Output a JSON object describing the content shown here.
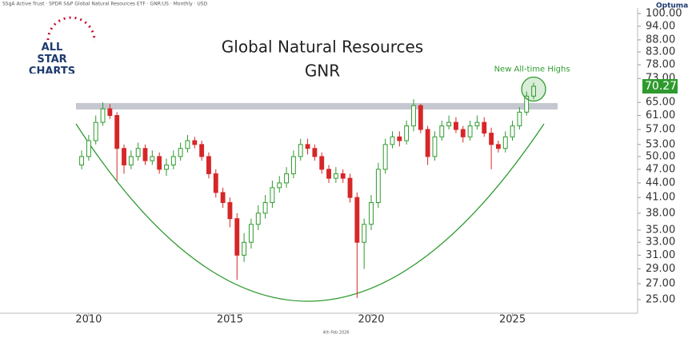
{
  "chart_data": {
    "type": "candlestick",
    "header": "SSgA Active Trust · SPDR S&P Global Natural Resources ETF · GNR:US · Monthly · USD",
    "brand": "ALL STAR CHARTS",
    "platform": "Optuma",
    "title": "Global Natural Resources",
    "subtitle": "GNR",
    "annotation": "New All-time Highs",
    "footer": "4th Feb 2026",
    "log_scale": true,
    "up_color": "#2e9a2e",
    "down_color": "#d62728",
    "highlight_color": "#2e9a2e",
    "resistance_zone": [
      62.8,
      64.8
    ],
    "resistance_zone_x": [
      2009.55,
      2026.6
    ],
    "xlim": [
      2006.86,
      2029.43
    ],
    "xticks": [
      2010,
      2015,
      2020,
      2025
    ],
    "ylim": [
      23.4,
      102.7
    ],
    "yticks": [
      {
        "value": 25,
        "label": "25.00"
      },
      {
        "value": 27,
        "label": "27.00"
      },
      {
        "value": 29,
        "label": "29.00"
      },
      {
        "value": 31,
        "label": "31.00"
      },
      {
        "value": 33,
        "label": "33.00"
      },
      {
        "value": 35,
        "label": "35.00"
      },
      {
        "value": 38,
        "label": "38.00"
      },
      {
        "value": 41,
        "label": "41.00"
      },
      {
        "value": 44,
        "label": "44.00"
      },
      {
        "value": 47,
        "label": "47.00"
      },
      {
        "value": 50,
        "label": "50.00"
      },
      {
        "value": 53,
        "label": "53.00"
      },
      {
        "value": 57,
        "label": "57.00"
      },
      {
        "value": 61,
        "label": "61.00"
      },
      {
        "value": 65,
        "label": "65.00"
      },
      {
        "value": 73,
        "label": "73.00"
      },
      {
        "value": 78,
        "label": "78.00"
      },
      {
        "value": 83,
        "label": "83.00"
      },
      {
        "value": 88,
        "label": "88.00"
      },
      {
        "value": 94,
        "label": "94.00"
      },
      {
        "value": 100,
        "label": "100.00"
      }
    ],
    "x": [
      2009.75,
      2010,
      2010.25,
      2010.5,
      2010.75,
      2011,
      2011.25,
      2011.5,
      2011.75,
      2012,
      2012.25,
      2012.5,
      2012.75,
      2013,
      2013.25,
      2013.5,
      2013.75,
      2014,
      2014.25,
      2014.5,
      2014.75,
      2015,
      2015.25,
      2015.5,
      2015.75,
      2016,
      2016.25,
      2016.5,
      2016.75,
      2017,
      2017.25,
      2017.5,
      2017.75,
      2018,
      2018.25,
      2018.5,
      2018.75,
      2019,
      2019.25,
      2019.5,
      2019.75,
      2020,
      2020.25,
      2020.5,
      2020.75,
      2021,
      2021.25,
      2021.5,
      2021.75,
      2022,
      2022.25,
      2022.5,
      2022.75,
      2023,
      2023.25,
      2023.5,
      2023.75,
      2024,
      2024.25,
      2024.5,
      2024.75,
      2025,
      2025.25,
      2025.5,
      2025.75
    ],
    "open": [
      48,
      50,
      54,
      59,
      63,
      61,
      52,
      48,
      50,
      52,
      49,
      50,
      47,
      48,
      50,
      52,
      54,
      53,
      50,
      46,
      42,
      40,
      37,
      31,
      33,
      36,
      38,
      40,
      43,
      44,
      46,
      50,
      53,
      52,
      50,
      47,
      45,
      46,
      45,
      41,
      33,
      36,
      40,
      47,
      53,
      55,
      54,
      58,
      64,
      57,
      50,
      55,
      58,
      59,
      57,
      55,
      58,
      59,
      56,
      53,
      52,
      55,
      58,
      62,
      67
    ],
    "high": [
      51.5,
      55.5,
      61,
      65,
      64.5,
      62,
      53,
      51.5,
      53.5,
      53,
      51.5,
      51,
      49.5,
      51.5,
      53.5,
      55.5,
      55,
      54,
      51,
      47,
      43,
      41,
      38,
      34.5,
      37,
      39.5,
      41.5,
      44.5,
      45.5,
      47.5,
      51.5,
      54.5,
      54.5,
      53,
      51,
      48,
      47.5,
      47,
      46,
      42,
      37,
      41.5,
      48.5,
      54.5,
      56.5,
      56.5,
      59.5,
      66,
      64.5,
      58,
      56.5,
      59.5,
      61,
      60.5,
      58,
      59.5,
      61,
      60.5,
      57.5,
      54,
      56.5,
      59.5,
      63.5,
      68.5,
      71.5
    ],
    "low": [
      47,
      49,
      53,
      58,
      60,
      44.5,
      46,
      47,
      49,
      48,
      48,
      46,
      45.5,
      47,
      49,
      51,
      52,
      49,
      45,
      41,
      39,
      35.5,
      27.5,
      30,
      32,
      35,
      37,
      39,
      42,
      43,
      45,
      49,
      50.5,
      49,
      46,
      44,
      44,
      44,
      40,
      25.2,
      29,
      35,
      39,
      46,
      52,
      52.5,
      53,
      56.5,
      56,
      48,
      49,
      54,
      57,
      56,
      53.5,
      54,
      57,
      55,
      47,
      51,
      51,
      54,
      57,
      61,
      66
    ],
    "close": [
      50,
      54,
      59,
      63,
      61,
      52,
      48,
      50,
      52,
      49,
      50,
      47,
      48,
      50,
      52,
      54,
      53,
      50,
      46,
      42,
      40,
      37,
      31,
      33,
      36,
      38,
      40,
      43,
      44,
      46,
      50,
      53,
      52,
      50,
      47,
      45,
      46,
      45,
      41,
      33,
      36,
      40,
      47,
      53,
      55,
      54,
      58,
      64,
      57,
      50,
      55,
      58,
      59,
      57,
      55,
      58,
      59,
      56,
      53,
      52,
      55,
      58,
      62,
      67,
      70.27
    ]
  }
}
